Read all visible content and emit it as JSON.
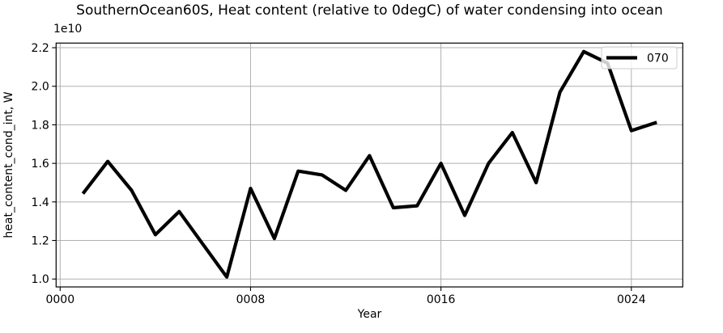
{
  "figure": {
    "title": "SouthernOcean60S, Heat content (relative to 0degC) of water condensing into ocean"
  },
  "colors": {
    "line": "#000000",
    "grid": "#b0b0b0",
    "spine": "#000000",
    "tick": "#000000",
    "legend_border": "#cccccc",
    "legend_bg": "rgba(255,255,255,0.8)",
    "background": "#ffffff"
  },
  "chart_data": {
    "type": "line",
    "title": "SouthernOcean60S, Heat content (relative to 0degC) of water condensing into ocean",
    "xlabel": "Year",
    "ylabel": "heat_content_cond_int, W",
    "y_offset_text": "1e10",
    "y_unit_multiplier": 10000000000.0,
    "x": [
      1,
      2,
      3,
      4,
      5,
      6,
      7,
      8,
      9,
      10,
      11,
      12,
      13,
      14,
      15,
      16,
      17,
      18,
      19,
      20,
      21,
      22,
      23,
      24,
      25
    ],
    "series": [
      {
        "name": "070",
        "color": "#000000",
        "values": [
          1.45,
          1.61,
          1.46,
          1.23,
          1.35,
          1.18,
          1.01,
          1.47,
          1.21,
          1.56,
          1.54,
          1.46,
          1.64,
          1.37,
          1.38,
          1.6,
          1.33,
          1.6,
          1.76,
          1.5,
          1.97,
          2.18,
          2.12,
          1.77,
          1.81
        ]
      }
    ],
    "xlim": [
      -0.17,
      26.16
    ],
    "ylim": [
      0.959,
      2.224
    ],
    "x_ticks": [
      0,
      8,
      16,
      24
    ],
    "x_tick_labels": [
      "0000",
      "0008",
      "0016",
      "0024"
    ],
    "y_ticks": [
      1.0,
      1.2,
      1.4,
      1.6,
      1.8,
      2.0,
      2.2
    ],
    "grid": true,
    "legend_position": "upper right",
    "legend_entries": [
      "070"
    ]
  }
}
